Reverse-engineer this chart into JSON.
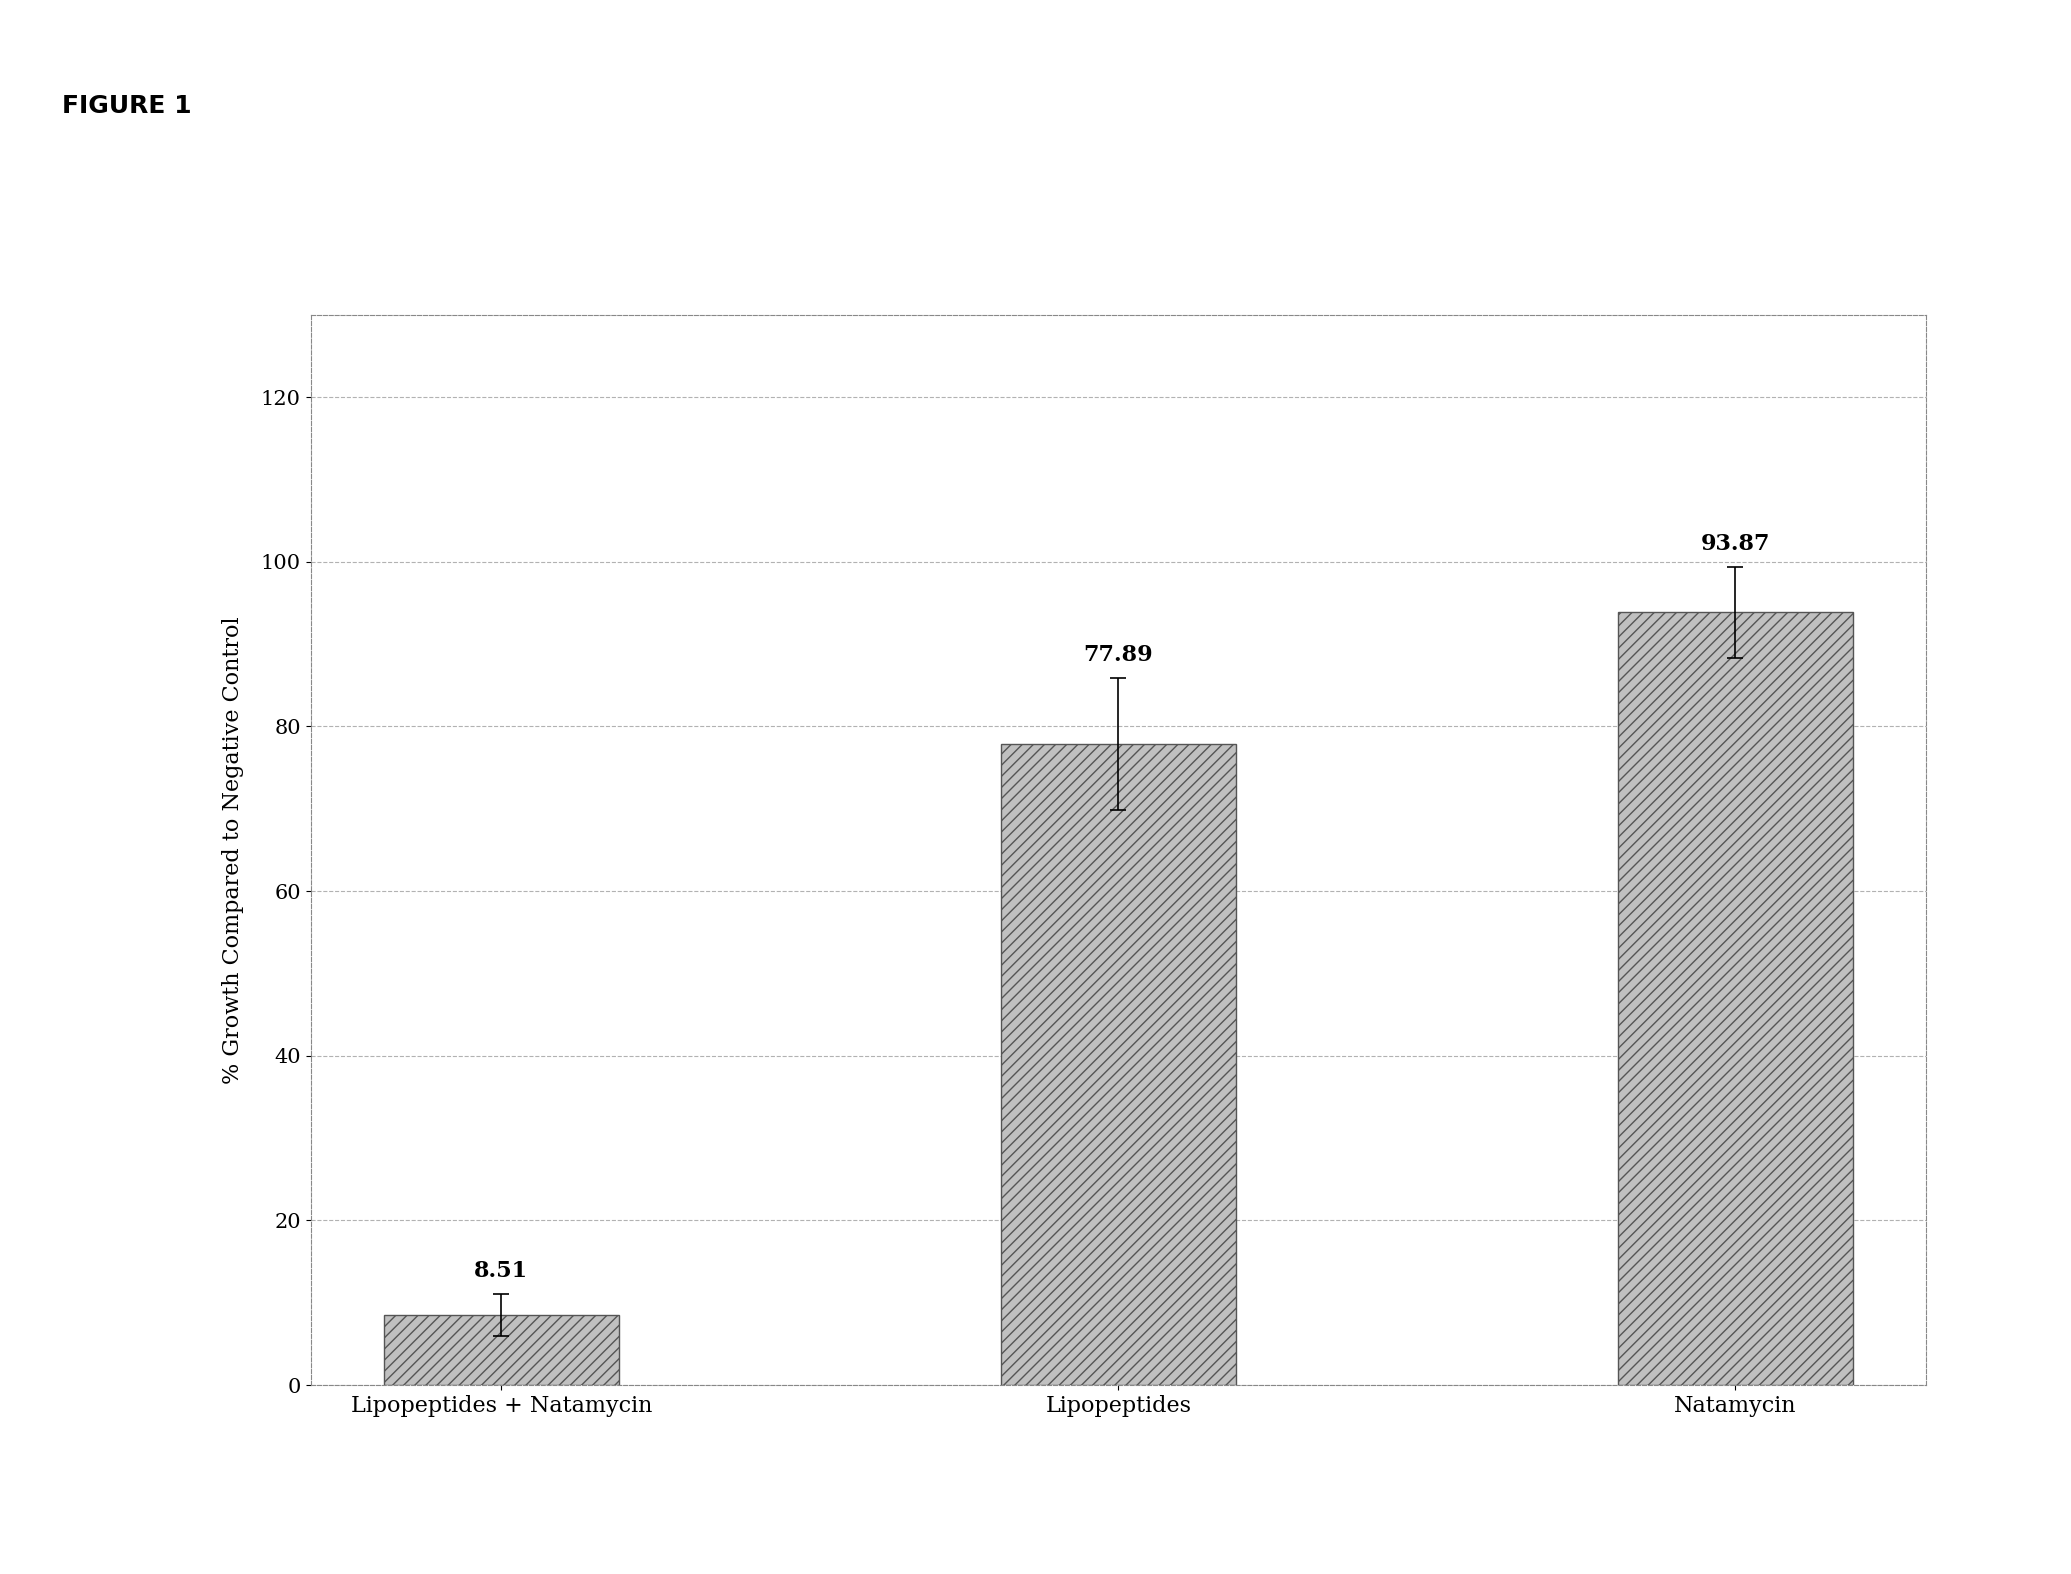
{
  "title": "FIGURE 1",
  "categories": [
    "Lipopeptides + Natamycin",
    "Lipopeptides",
    "Natamycin"
  ],
  "values": [
    8.51,
    77.89,
    93.87
  ],
  "errors": [
    2.5,
    8.0,
    5.5
  ],
  "bar_color": "#c0c0c0",
  "bar_edge_color": "#555555",
  "hatch": "///",
  "ylabel": "% Growth Compared to Negative Control",
  "ylim": [
    0,
    130
  ],
  "yticks": [
    0,
    20,
    40,
    60,
    80,
    100,
    120
  ],
  "grid_color": "#aaaaaa",
  "background_color": "#ffffff",
  "figure_bg": "#ffffff",
  "bar_width": 0.38,
  "label_fontsize": 16,
  "tick_fontsize": 15,
  "title_fontsize": 18,
  "value_fontsize": 16
}
